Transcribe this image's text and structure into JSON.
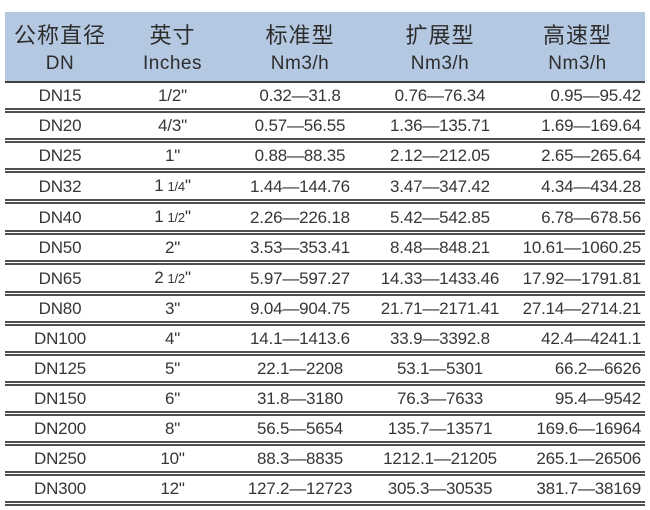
{
  "chart_data": {
    "type": "table",
    "description": "Flow capacity specification table (nominal diameter vs flow ranges)",
    "columns": [
      {
        "title": "公称直径",
        "subtitle": "DN"
      },
      {
        "title": "英寸",
        "subtitle": "Inches"
      },
      {
        "title": "标准型",
        "subtitle": "Nm3/h"
      },
      {
        "title": "扩展型",
        "subtitle": "Nm3/h"
      },
      {
        "title": "高速型",
        "subtitle": "Nm3/h"
      }
    ],
    "inch_unit_mark": "\"",
    "style": {
      "header_bg": "#b5c8e1",
      "rule_color": "#4f4f4f",
      "text_color": "#363636",
      "header_text_color": "#2d2d2d"
    },
    "rows": [
      {
        "dn": "DN15",
        "inch_whole": "1/2",
        "inch_frac": "",
        "standard": "0.32—31.8",
        "extended": "0.76—76.34",
        "high_speed": "0.95—95.42"
      },
      {
        "dn": "DN20",
        "inch_whole": "4/3",
        "inch_frac": "",
        "standard": "0.57—56.55",
        "extended": "1.36—135.71",
        "high_speed": "1.69—169.64"
      },
      {
        "dn": "DN25",
        "inch_whole": "1",
        "inch_frac": "",
        "standard": "0.88—88.35",
        "extended": "2.12—212.05",
        "high_speed": "2.65—265.64"
      },
      {
        "dn": "DN32",
        "inch_whole": "1",
        "inch_frac": "1/4",
        "standard": "1.44—144.76",
        "extended": "3.47—347.42",
        "high_speed": "4.34—434.28"
      },
      {
        "dn": "DN40",
        "inch_whole": "1",
        "inch_frac": "1/2",
        "standard": "2.26—226.18",
        "extended": "5.42—542.85",
        "high_speed": "6.78—678.56"
      },
      {
        "dn": "DN50",
        "inch_whole": "2",
        "inch_frac": "",
        "standard": "3.53—353.41",
        "extended": "8.48—848.21",
        "high_speed": "10.61—1060.25"
      },
      {
        "dn": "DN65",
        "inch_whole": "2",
        "inch_frac": "1/2",
        "standard": "5.97—597.27",
        "extended": "14.33—1433.46",
        "high_speed": "17.92—1791.81"
      },
      {
        "dn": "DN80",
        "inch_whole": "3",
        "inch_frac": "",
        "standard": "9.04—904.75",
        "extended": "21.71—2171.41",
        "high_speed": "27.14—2714.21"
      },
      {
        "dn": "DN100",
        "inch_whole": "4",
        "inch_frac": "",
        "standard": "14.1—1413.6",
        "extended": "33.9—3392.8",
        "high_speed": "42.4—4241.1"
      },
      {
        "dn": "DN125",
        "inch_whole": "5",
        "inch_frac": "",
        "standard": "22.1—2208",
        "extended": "53.1—5301",
        "high_speed": "66.2—6626"
      },
      {
        "dn": "DN150",
        "inch_whole": "6",
        "inch_frac": "",
        "standard": "31.8—3180",
        "extended": "76.3—7633",
        "high_speed": "95.4—9542"
      },
      {
        "dn": "DN200",
        "inch_whole": "8",
        "inch_frac": "",
        "standard": "56.5—5654",
        "extended": "135.7—13571",
        "high_speed": "169.6—16964"
      },
      {
        "dn": "DN250",
        "inch_whole": "10",
        "inch_frac": "",
        "standard": "88.3—8835",
        "extended": "1212.1—21205",
        "high_speed": "265.1—26506"
      },
      {
        "dn": "DN300",
        "inch_whole": "12",
        "inch_frac": "",
        "standard": "127.2—12723",
        "extended": "305.3—30535",
        "high_speed": "381.7—38169"
      }
    ]
  }
}
